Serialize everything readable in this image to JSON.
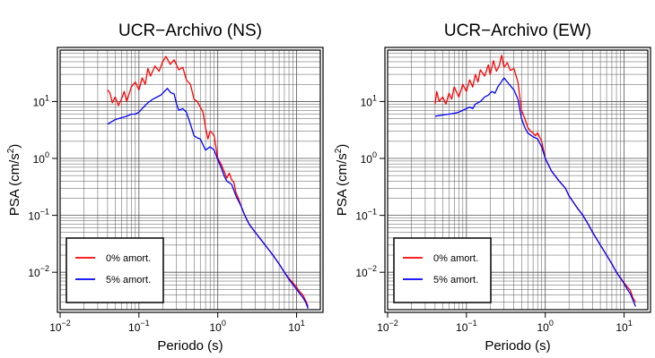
{
  "chart_data": [
    {
      "type": "line",
      "title": "UCR−Archivo (NS)",
      "xlabel": "Periodo (s)",
      "ylabel_main": "PSA (cm/s",
      "ylabel_exp": "2",
      "ylabel_tail": ")",
      "xscale": "log",
      "yscale": "log",
      "xlim": [
        0.01,
        20
      ],
      "ylim": [
        0.0022,
        80
      ],
      "grid": true,
      "legend_position": "bottom-left",
      "x_ticks": [
        {
          "value": 0.01,
          "base": "10",
          "exp": "−2"
        },
        {
          "value": 0.1,
          "base": "10",
          "exp": "−1"
        },
        {
          "value": 1,
          "base": "10",
          "exp": "0"
        },
        {
          "value": 10,
          "base": "10",
          "exp": "1"
        }
      ],
      "y_ticks": [
        {
          "value": 0.01,
          "base": "10",
          "exp": "−2"
        },
        {
          "value": 0.1,
          "base": "10",
          "exp": "−1"
        },
        {
          "value": 1,
          "base": "10",
          "exp": "0"
        },
        {
          "value": 10,
          "base": "10",
          "exp": "1"
        }
      ],
      "series": [
        {
          "name": "0% amort.",
          "color": "#ff0000",
          "points": [
            [
              0.04,
              16
            ],
            [
              0.043,
              14
            ],
            [
              0.046,
              9.5
            ],
            [
              0.05,
              12
            ],
            [
              0.055,
              8.5
            ],
            [
              0.06,
              11
            ],
            [
              0.065,
              15
            ],
            [
              0.07,
              10
            ],
            [
              0.08,
              18
            ],
            [
              0.09,
              22
            ],
            [
              0.1,
              16
            ],
            [
              0.11,
              26
            ],
            [
              0.12,
              20
            ],
            [
              0.13,
              38
            ],
            [
              0.14,
              28
            ],
            [
              0.16,
              42
            ],
            [
              0.18,
              34
            ],
            [
              0.2,
              50
            ],
            [
              0.22,
              62
            ],
            [
              0.25,
              45
            ],
            [
              0.28,
              54
            ],
            [
              0.32,
              36
            ],
            [
              0.36,
              40
            ],
            [
              0.4,
              24
            ],
            [
              0.45,
              20
            ],
            [
              0.5,
              11
            ],
            [
              0.55,
              10
            ],
            [
              0.6,
              8
            ],
            [
              0.65,
              6.5
            ],
            [
              0.7,
              3.5
            ],
            [
              0.75,
              2.2
            ],
            [
              0.8,
              3
            ],
            [
              0.85,
              2.8
            ],
            [
              0.9,
              2.5
            ],
            [
              1.0,
              1.0
            ],
            [
              1.1,
              0.8
            ],
            [
              1.2,
              0.6
            ],
            [
              1.3,
              0.45
            ],
            [
              1.4,
              0.55
            ],
            [
              1.5,
              0.42
            ],
            [
              1.6,
              0.38
            ],
            [
              1.7,
              0.25
            ],
            [
              1.8,
              0.21
            ],
            [
              2.0,
              0.14
            ],
            [
              2.2,
              0.1
            ],
            [
              2.5,
              0.07
            ],
            [
              3.0,
              0.05
            ],
            [
              3.5,
              0.038
            ],
            [
              4.0,
              0.03
            ],
            [
              5.0,
              0.02
            ],
            [
              6.0,
              0.014
            ],
            [
              7.0,
              0.01
            ],
            [
              8.0,
              0.0078
            ],
            [
              10.0,
              0.0055
            ],
            [
              11.0,
              0.0045
            ],
            [
              12.0,
              0.004
            ],
            [
              13.0,
              0.0032
            ],
            [
              14.0,
              0.0025
            ]
          ]
        },
        {
          "name": "5% amort.",
          "color": "#0000ff",
          "points": [
            [
              0.04,
              4
            ],
            [
              0.045,
              4.4
            ],
            [
              0.05,
              4.8
            ],
            [
              0.06,
              5.2
            ],
            [
              0.07,
              5.5
            ],
            [
              0.08,
              6
            ],
            [
              0.09,
              6
            ],
            [
              0.1,
              6.5
            ],
            [
              0.11,
              7.5
            ],
            [
              0.12,
              8.5
            ],
            [
              0.13,
              9.5
            ],
            [
              0.15,
              11
            ],
            [
              0.17,
              12
            ],
            [
              0.19,
              13
            ],
            [
              0.21,
              15
            ],
            [
              0.23,
              17
            ],
            [
              0.25,
              14.5
            ],
            [
              0.28,
              13.5
            ],
            [
              0.3,
              9
            ],
            [
              0.32,
              7
            ],
            [
              0.36,
              7.5
            ],
            [
              0.4,
              6.5
            ],
            [
              0.45,
              4
            ],
            [
              0.5,
              2.5
            ],
            [
              0.55,
              2.3
            ],
            [
              0.6,
              2.2
            ],
            [
              0.7,
              1.4
            ],
            [
              0.75,
              1.5
            ],
            [
              0.8,
              1.6
            ],
            [
              0.9,
              1.4
            ],
            [
              1.0,
              0.95
            ],
            [
              1.1,
              0.7
            ],
            [
              1.2,
              0.5
            ],
            [
              1.3,
              0.4
            ],
            [
              1.5,
              0.35
            ],
            [
              1.7,
              0.22
            ],
            [
              2.0,
              0.14
            ],
            [
              2.2,
              0.1
            ],
            [
              2.5,
              0.07
            ],
            [
              3.0,
              0.05
            ],
            [
              3.5,
              0.038
            ],
            [
              4.0,
              0.03
            ],
            [
              5.0,
              0.02
            ],
            [
              6.0,
              0.014
            ],
            [
              7.0,
              0.01
            ],
            [
              8.0,
              0.0075
            ],
            [
              10.0,
              0.005
            ],
            [
              11.0,
              0.0042
            ],
            [
              12.0,
              0.0036
            ],
            [
              13.0,
              0.003
            ],
            [
              14.0,
              0.0023
            ]
          ]
        }
      ]
    },
    {
      "type": "line",
      "title": "UCR−Archivo (EW)",
      "xlabel": "Periodo (s)",
      "ylabel_main": "PSA (cm/s",
      "ylabel_exp": "2",
      "ylabel_tail": ")",
      "xscale": "log",
      "yscale": "log",
      "xlim": [
        0.01,
        20
      ],
      "ylim": [
        0.0022,
        80
      ],
      "grid": true,
      "legend_position": "bottom-left",
      "x_ticks": [
        {
          "value": 0.01,
          "base": "10",
          "exp": "−2"
        },
        {
          "value": 0.1,
          "base": "10",
          "exp": "−1"
        },
        {
          "value": 1,
          "base": "10",
          "exp": "0"
        },
        {
          "value": 10,
          "base": "10",
          "exp": "1"
        }
      ],
      "y_ticks": [
        {
          "value": 0.01,
          "base": "10",
          "exp": "−2"
        },
        {
          "value": 0.1,
          "base": "10",
          "exp": "−1"
        },
        {
          "value": 1,
          "base": "10",
          "exp": "0"
        },
        {
          "value": 10,
          "base": "10",
          "exp": "1"
        }
      ],
      "series": [
        {
          "name": "0% amort.",
          "color": "#ff0000",
          "points": [
            [
              0.04,
              9
            ],
            [
              0.042,
              15
            ],
            [
              0.045,
              10
            ],
            [
              0.05,
              12
            ],
            [
              0.055,
              9
            ],
            [
              0.06,
              14
            ],
            [
              0.065,
              11
            ],
            [
              0.07,
              18
            ],
            [
              0.08,
              12
            ],
            [
              0.09,
              20
            ],
            [
              0.1,
              15
            ],
            [
              0.11,
              24
            ],
            [
              0.12,
              18
            ],
            [
              0.13,
              30
            ],
            [
              0.14,
              22
            ],
            [
              0.15,
              36
            ],
            [
              0.17,
              28
            ],
            [
              0.19,
              44
            ],
            [
              0.2,
              30
            ],
            [
              0.22,
              52
            ],
            [
              0.24,
              34
            ],
            [
              0.26,
              42
            ],
            [
              0.28,
              65
            ],
            [
              0.3,
              40
            ],
            [
              0.33,
              48
            ],
            [
              0.36,
              35
            ],
            [
              0.4,
              38
            ],
            [
              0.45,
              22
            ],
            [
              0.5,
              7
            ],
            [
              0.55,
              5
            ],
            [
              0.6,
              3.5
            ],
            [
              0.65,
              3
            ],
            [
              0.7,
              2.8
            ],
            [
              0.75,
              2.5
            ],
            [
              0.8,
              2.8
            ],
            [
              0.9,
              2.0
            ],
            [
              1.0,
              1.0
            ],
            [
              1.2,
              0.6
            ],
            [
              1.5,
              0.4
            ],
            [
              1.8,
              0.3
            ],
            [
              2.0,
              0.22
            ],
            [
              2.5,
              0.14
            ],
            [
              3.0,
              0.1
            ],
            [
              3.5,
              0.07
            ],
            [
              4.0,
              0.05
            ],
            [
              5.0,
              0.03
            ],
            [
              6.0,
              0.02
            ],
            [
              7.0,
              0.014
            ],
            [
              8.0,
              0.01
            ],
            [
              10.0,
              0.0065
            ],
            [
              11.0,
              0.0055
            ],
            [
              12.0,
              0.0048
            ],
            [
              13.0,
              0.0035
            ],
            [
              14.0,
              0.003
            ]
          ]
        },
        {
          "name": "5% amort.",
          "color": "#0000ff",
          "points": [
            [
              0.04,
              5.5
            ],
            [
              0.05,
              5.8
            ],
            [
              0.06,
              6
            ],
            [
              0.07,
              6.2
            ],
            [
              0.08,
              6.5
            ],
            [
              0.09,
              7
            ],
            [
              0.1,
              7.5
            ],
            [
              0.11,
              8
            ],
            [
              0.12,
              7.5
            ],
            [
              0.13,
              9
            ],
            [
              0.15,
              10
            ],
            [
              0.17,
              12
            ],
            [
              0.19,
              13
            ],
            [
              0.21,
              15
            ],
            [
              0.23,
              14
            ],
            [
              0.25,
              18
            ],
            [
              0.27,
              21
            ],
            [
              0.3,
              26
            ],
            [
              0.33,
              22
            ],
            [
              0.36,
              19
            ],
            [
              0.4,
              16
            ],
            [
              0.45,
              11
            ],
            [
              0.5,
              5
            ],
            [
              0.55,
              3.5
            ],
            [
              0.6,
              2.8
            ],
            [
              0.7,
              2.4
            ],
            [
              0.8,
              2.2
            ],
            [
              0.9,
              1.6
            ],
            [
              1.0,
              1.0
            ],
            [
              1.2,
              0.6
            ],
            [
              1.5,
              0.4
            ],
            [
              1.8,
              0.3
            ],
            [
              2.0,
              0.22
            ],
            [
              2.5,
              0.14
            ],
            [
              3.0,
              0.1
            ],
            [
              3.5,
              0.07
            ],
            [
              4.0,
              0.05
            ],
            [
              5.0,
              0.03
            ],
            [
              6.0,
              0.02
            ],
            [
              7.0,
              0.014
            ],
            [
              8.0,
              0.01
            ],
            [
              10.0,
              0.0063
            ],
            [
              11.0,
              0.005
            ],
            [
              12.0,
              0.0042
            ],
            [
              13.0,
              0.0032
            ],
            [
              14.0,
              0.0025
            ]
          ]
        }
      ]
    }
  ]
}
